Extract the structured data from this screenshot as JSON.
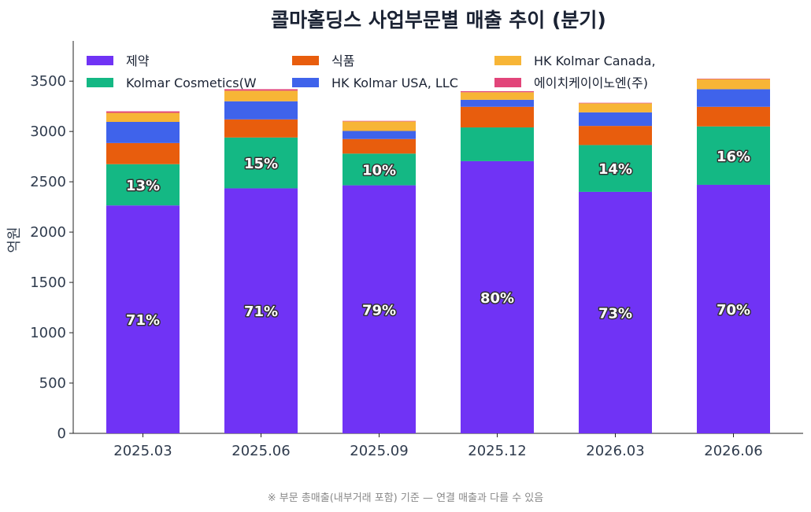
{
  "chart_data": {
    "type": "bar",
    "stacked": true,
    "title": "콜마홀딩스 사업부문별 매출 추이 (분기)",
    "xlabel": "",
    "ylabel": "억원",
    "ylim": [
      0,
      3900
    ],
    "yticks": [
      0,
      500,
      1000,
      1500,
      2000,
      2500,
      3000,
      3500
    ],
    "categories": [
      "2025.03",
      "2025.06",
      "2025.09",
      "2025.12",
      "2026.03",
      "2026.06"
    ],
    "series": [
      {
        "name": "제약",
        "color": "#7033f5",
        "values": [
          2265,
          2435,
          2465,
          2705,
          2400,
          2470
        ],
        "labels": [
          "71%",
          "71%",
          "79%",
          "80%",
          "73%",
          "70%"
        ]
      },
      {
        "name": "Kolmar Cosmetics(W",
        "color": "#14b884",
        "values": [
          410,
          505,
          315,
          335,
          465,
          580
        ],
        "labels": [
          "13%",
          "15%",
          "10%",
          "",
          "14%",
          "16%"
        ]
      },
      {
        "name": "식품",
        "color": "#e85d0d",
        "values": [
          210,
          180,
          145,
          205,
          190,
          195
        ],
        "labels": [
          "",
          "",
          "",
          "",
          "",
          ""
        ]
      },
      {
        "name": "HK Kolmar USA, LLC",
        "color": "#3f63eb",
        "values": [
          210,
          180,
          80,
          70,
          135,
          175
        ],
        "labels": [
          "",
          "",
          "",
          "",
          "",
          ""
        ]
      },
      {
        "name": "HK Kolmar Canada,",
        "color": "#f7b536",
        "values": [
          90,
          105,
          95,
          75,
          90,
          100
        ],
        "labels": [
          "",
          "",
          "",
          "",
          "",
          ""
        ]
      },
      {
        "name": "에이치케이이노엔(주)",
        "color": "#e2457a",
        "values": [
          15,
          15,
          5,
          10,
          5,
          5
        ],
        "labels": [
          "",
          "",
          "",
          "",
          "",
          ""
        ]
      }
    ],
    "legend_position": "top-left",
    "grid": false
  },
  "footnote": "※ 부문 총매출(내부거래 포함) 기준 — 연결 매출과 다를 수 있음"
}
